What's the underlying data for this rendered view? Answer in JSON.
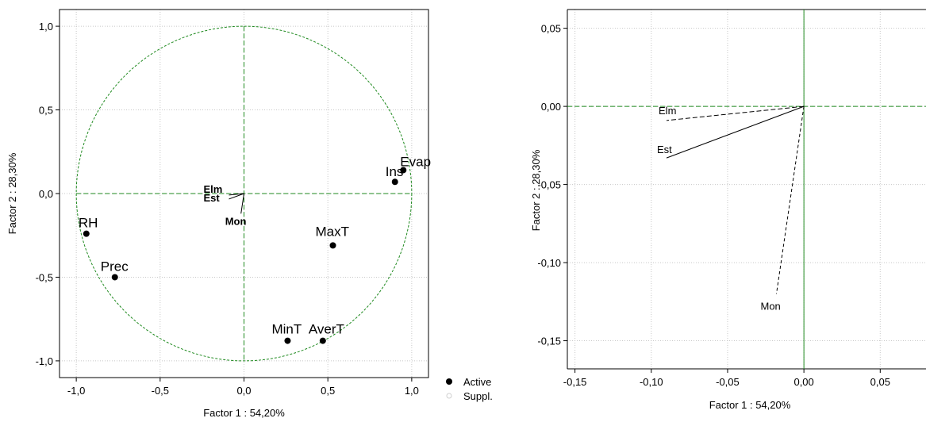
{
  "chart_data": [
    {
      "type": "scatter",
      "title": "",
      "xlabel": "Factor 1 : 54,20%",
      "ylabel": "Factor 2 : 28,30%",
      "xlim": [
        -1.1,
        1.1
      ],
      "ylim": [
        -1.1,
        1.1
      ],
      "xticks": [
        "-1,0",
        "-0,5",
        "0,0",
        "0,5",
        "1,0"
      ],
      "yticks": [
        "1,0",
        "0,5",
        "0,0",
        "-0,5",
        "-1,0"
      ],
      "grid": true,
      "unit_circle": true,
      "points": [
        {
          "label": "Evap",
          "x": 0.95,
          "y": 0.14,
          "group": "Active"
        },
        {
          "label": "Ins",
          "x": 0.9,
          "y": 0.07,
          "group": "Active"
        },
        {
          "label": "MaxT",
          "x": 0.53,
          "y": -0.31,
          "group": "Active"
        },
        {
          "label": "MinT",
          "x": 0.26,
          "y": -0.88,
          "group": "Active"
        },
        {
          "label": "AverT",
          "x": 0.47,
          "y": -0.88,
          "group": "Active"
        },
        {
          "label": "RH",
          "x": -0.94,
          "y": -0.24,
          "group": "Active"
        },
        {
          "label": "Prec",
          "x": -0.77,
          "y": -0.5,
          "group": "Active"
        },
        {
          "label": "Elm",
          "x": -0.09,
          "y": -0.009,
          "group": "Suppl."
        },
        {
          "label": "Est",
          "x": -0.09,
          "y": -0.033,
          "group": "Suppl."
        },
        {
          "label": "Mon",
          "x": -0.018,
          "y": -0.12,
          "group": "Suppl."
        }
      ],
      "legend": {
        "position": "bottom-right",
        "entries": [
          "Active",
          "Suppl."
        ]
      }
    },
    {
      "type": "scatter",
      "title": "",
      "xlabel": "Factor 1 : 54,20%",
      "ylabel": "Factor 2 : 28,30%",
      "xlim": [
        -0.155,
        0.08
      ],
      "ylim": [
        -0.168,
        0.062
      ],
      "xticks": [
        "-0,15",
        "-0,10",
        "-0,05",
        "0,00",
        "0,05"
      ],
      "yticks": [
        "0,05",
        "0,00",
        "-0,05",
        "-0,10",
        "-0,15"
      ],
      "grid": true,
      "points": [
        {
          "label": "Elm",
          "x": -0.09,
          "y": -0.009,
          "group": "Suppl."
        },
        {
          "label": "Est",
          "x": -0.09,
          "y": -0.033,
          "group": "Suppl."
        },
        {
          "label": "Mon",
          "x": -0.018,
          "y": -0.12,
          "group": "Suppl."
        }
      ]
    }
  ]
}
